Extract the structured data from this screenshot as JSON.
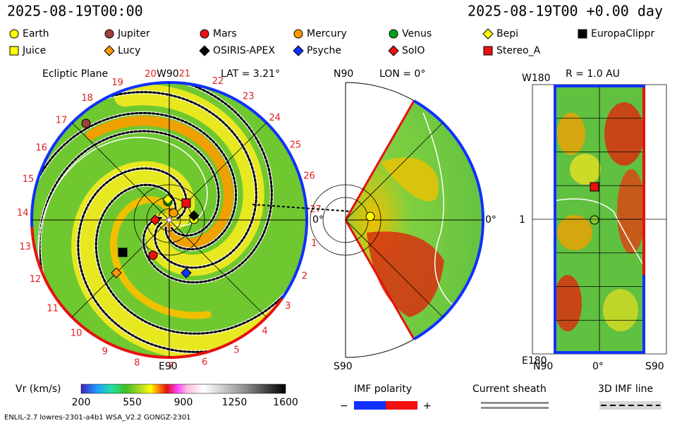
{
  "header": {
    "datetime": "2025-08-19T00:00",
    "model_time": "2025-08-19T00 +0.00 day"
  },
  "legend": [
    {
      "name": "Earth",
      "shape": "circle",
      "color": "#ffff00"
    },
    {
      "name": "Jupiter",
      "shape": "circle",
      "color": "#a0403a"
    },
    {
      "name": "Mars",
      "shape": "circle",
      "color": "#e81010"
    },
    {
      "name": "Mercury",
      "shape": "circle",
      "color": "#ff9a00"
    },
    {
      "name": "Venus",
      "shape": "circle",
      "color": "#00a020"
    },
    {
      "name": "Bepi",
      "shape": "diamond",
      "color": "#ffff00"
    },
    {
      "name": "EuropaClippr",
      "shape": "square",
      "color": "#000000"
    },
    {
      "name": "Juice",
      "shape": "square",
      "color": "#ffff00"
    },
    {
      "name": "Lucy",
      "shape": "diamond",
      "color": "#ff9a00"
    },
    {
      "name": "OSIRIS-APEX",
      "shape": "diamond",
      "color": "#000000"
    },
    {
      "name": "Psyche",
      "shape": "diamond",
      "color": "#1030ff"
    },
    {
      "name": "SolO",
      "shape": "diamond",
      "color": "#e81010"
    },
    {
      "name": "Stereo_A",
      "shape": "square",
      "color": "#e81010"
    }
  ],
  "ecliptic_panel": {
    "title": "Ecliptic Plane",
    "top_label": "W90",
    "lat_label": "LAT = 3.21°",
    "right_label": "0°",
    "bottom_label": "E90",
    "carrington_longitudes": [
      "1",
      "2",
      "3",
      "4",
      "5",
      "6",
      "7",
      "8",
      "9",
      "10",
      "11",
      "12",
      "13",
      "14",
      "15",
      "16",
      "17",
      "18",
      "19",
      "20",
      "21",
      "22",
      "23",
      "24",
      "25",
      "26",
      "27"
    ]
  },
  "meridional_panel": {
    "top_label": "N90",
    "lon_label": "LON = 0°",
    "right_label": "0°",
    "bottom_label": "S90"
  },
  "radial_panel": {
    "title": "R = 1.0 AU",
    "top_label": "W180",
    "middle_label": "1",
    "bottom_label": "E180",
    "x_labels": [
      "N90",
      "0°",
      "S90"
    ]
  },
  "colorbar": {
    "title": "Vr (km/s)",
    "ticks": [
      "200",
      "550",
      "900",
      "1250",
      "1600"
    ]
  },
  "imf_polarity": {
    "title": "IMF polarity",
    "minus": "−",
    "plus": "+"
  },
  "current_sheath": {
    "title": "Current sheath"
  },
  "imf_line": {
    "title": "3D IMF line"
  },
  "footer": {
    "model_info": "ENLIL-2.7 lowres-2301-a4b1 WSA_V2.2 GONGZ-2301"
  }
}
